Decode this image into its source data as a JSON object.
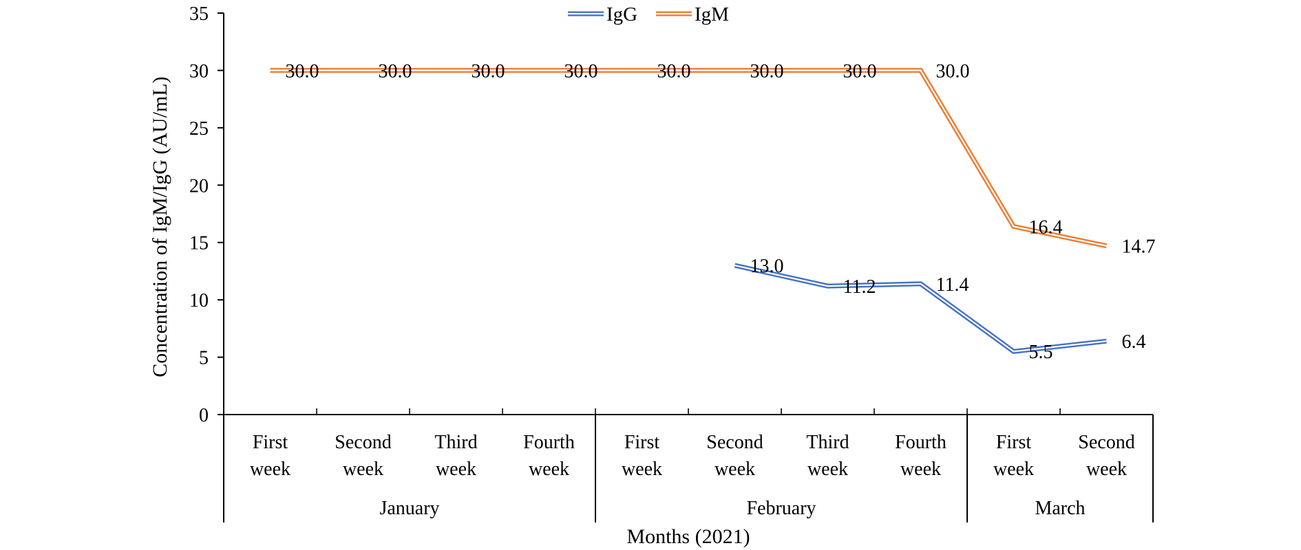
{
  "chart_data": {
    "type": "line",
    "title": "",
    "xlabel": "Months (2021)",
    "ylabel": "Concentration of IgM/IgG (AU/mL)",
    "ylim": [
      0,
      35
    ],
    "yticks": [
      0,
      5,
      10,
      15,
      20,
      25,
      30,
      35
    ],
    "grid": false,
    "legend_placement": "top-center",
    "categories": [
      {
        "week": [
          "First",
          "week"
        ],
        "month": "January"
      },
      {
        "week": [
          "Second",
          "week"
        ],
        "month": "January"
      },
      {
        "week": [
          "Third",
          "week"
        ],
        "month": "January"
      },
      {
        "week": [
          "Fourth",
          "week"
        ],
        "month": "January"
      },
      {
        "week": [
          "First",
          "week"
        ],
        "month": "February"
      },
      {
        "week": [
          "Second",
          "week"
        ],
        "month": "February"
      },
      {
        "week": [
          "Third",
          "week"
        ],
        "month": "February"
      },
      {
        "week": [
          "Fourth",
          "week"
        ],
        "month": "February"
      },
      {
        "week": [
          "First",
          "week"
        ],
        "month": "March"
      },
      {
        "week": [
          "Second",
          "week"
        ],
        "month": "March"
      }
    ],
    "groups": [
      {
        "label": "January",
        "start": 0,
        "count": 4
      },
      {
        "label": "February",
        "start": 4,
        "count": 4
      },
      {
        "label": "March",
        "start": 8,
        "count": 2
      }
    ],
    "series": [
      {
        "name": "IgG",
        "color": "#4472C4",
        "values": [
          null,
          null,
          null,
          null,
          null,
          13.0,
          11.2,
          11.4,
          5.5,
          6.4
        ],
        "labels": [
          null,
          null,
          null,
          null,
          null,
          "13.0",
          "11.2",
          "11.4",
          "5.5",
          "6.4"
        ]
      },
      {
        "name": "IgM",
        "color": "#ED7D31",
        "values": [
          30.0,
          30.0,
          30.0,
          30.0,
          30.0,
          30.0,
          30.0,
          30.0,
          16.4,
          14.7
        ],
        "labels": [
          "30.0",
          "30.0",
          "30.0",
          "30.0",
          "30.0",
          "30.0",
          "30.0",
          "30.0",
          "16.4",
          "14.7"
        ]
      }
    ]
  }
}
